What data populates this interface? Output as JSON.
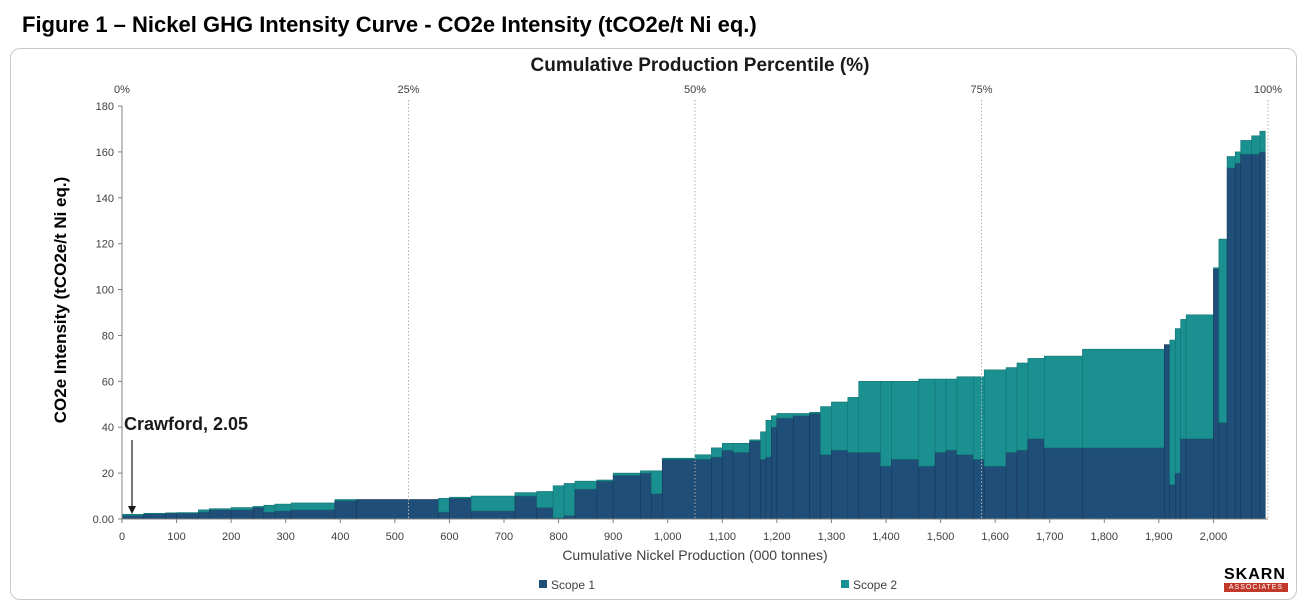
{
  "figure_title": "Figure 1 – Nickel GHG Intensity Curve - CO2e Intensity (tCO2e/t Ni eq.)",
  "logo": {
    "top": "SKARN",
    "bottom": "ASSOCIATES"
  },
  "colors": {
    "scope1": "#1f4e79",
    "scope2": "#1a9090",
    "grid": "#b0b0b0",
    "axis": "#808080"
  },
  "chart_data": {
    "type": "area",
    "subtype": "cost-curve (variable-width step bars, stacked)",
    "xlabel": "Cumulative Nickel Production (000 tonnes)",
    "ylabel": "CO2e Intensity (tCO2e/t Ni eq.)",
    "top_axis_title": "Cumulative Production Percentile (%)",
    "xlim": [
      0,
      2100
    ],
    "ylim": [
      0,
      180
    ],
    "x_ticks": [
      "0",
      "100",
      "200",
      "300",
      "400",
      "500",
      "600",
      "700",
      "800",
      "900",
      "1,000",
      "1,100",
      "1,200",
      "1,300",
      "1,400",
      "1,500",
      "1,600",
      "1,700",
      "1,800",
      "1,900",
      "2,000"
    ],
    "x_tick_values": [
      0,
      100,
      200,
      300,
      400,
      500,
      600,
      700,
      800,
      900,
      1000,
      1100,
      1200,
      1300,
      1400,
      1500,
      1600,
      1700,
      1800,
      1900,
      2000
    ],
    "y_ticks": [
      "0.00",
      "20",
      "40",
      "60",
      "80",
      "100",
      "120",
      "140",
      "160",
      "180"
    ],
    "y_tick_values": [
      0,
      20,
      40,
      60,
      80,
      100,
      120,
      140,
      160,
      180
    ],
    "top_ticks": [
      "0%",
      "25%",
      "50%",
      "75%",
      "100%"
    ],
    "top_tick_values": [
      0,
      0.25,
      0.5,
      0.75,
      1.0
    ],
    "grid": "vertical dotted lines at 25%, 50%, 75%, 100%",
    "legend": {
      "position": "bottom",
      "entries": [
        "Scope 1",
        "Scope 2"
      ]
    },
    "annotation": {
      "text": "Crawford, 2.05",
      "x": 25,
      "y": 2.05
    },
    "bars": [
      {
        "x0": 0,
        "x1": 40,
        "scope1": 1.5,
        "scope2": 0.55
      },
      {
        "x0": 40,
        "x1": 80,
        "scope1": 2.2,
        "scope2": 0.3
      },
      {
        "x0": 80,
        "x1": 100,
        "scope1": 2.5,
        "scope2": 0.2
      },
      {
        "x0": 100,
        "x1": 140,
        "scope1": 2.5,
        "scope2": 0.3
      },
      {
        "x0": 140,
        "x1": 160,
        "scope1": 3.0,
        "scope2": 1.0
      },
      {
        "x0": 160,
        "x1": 200,
        "scope1": 4.0,
        "scope2": 0.5
      },
      {
        "x0": 200,
        "x1": 240,
        "scope1": 4.0,
        "scope2": 1.0
      },
      {
        "x0": 240,
        "x1": 260,
        "scope1": 5.0,
        "scope2": 0.5
      },
      {
        "x0": 260,
        "x1": 280,
        "scope1": 3.0,
        "scope2": 3.0
      },
      {
        "x0": 280,
        "x1": 310,
        "scope1": 3.5,
        "scope2": 3.0
      },
      {
        "x0": 310,
        "x1": 390,
        "scope1": 4.0,
        "scope2": 3.0
      },
      {
        "x0": 390,
        "x1": 430,
        "scope1": 8.0,
        "scope2": 0.5
      },
      {
        "x0": 430,
        "x1": 580,
        "scope1": 8.5,
        "scope2": 0.0
      },
      {
        "x0": 580,
        "x1": 600,
        "scope1": 3.0,
        "scope2": 6.0
      },
      {
        "x0": 600,
        "x1": 640,
        "scope1": 9.0,
        "scope2": 0.5
      },
      {
        "x0": 640,
        "x1": 720,
        "scope1": 3.5,
        "scope2": 6.5
      },
      {
        "x0": 720,
        "x1": 760,
        "scope1": 10.0,
        "scope2": 1.5
      },
      {
        "x0": 760,
        "x1": 790,
        "scope1": 5.0,
        "scope2": 7.0
      },
      {
        "x0": 790,
        "x1": 810,
        "scope1": 0.5,
        "scope2": 14.0
      },
      {
        "x0": 810,
        "x1": 830,
        "scope1": 1.5,
        "scope2": 14.0
      },
      {
        "x0": 830,
        "x1": 870,
        "scope1": 13.0,
        "scope2": 3.5
      },
      {
        "x0": 870,
        "x1": 900,
        "scope1": 16.5,
        "scope2": 0.5
      },
      {
        "x0": 900,
        "x1": 950,
        "scope1": 19.0,
        "scope2": 1.0
      },
      {
        "x0": 950,
        "x1": 970,
        "scope1": 20.0,
        "scope2": 1.0
      },
      {
        "x0": 970,
        "x1": 990,
        "scope1": 11.0,
        "scope2": 10.0
      },
      {
        "x0": 990,
        "x1": 1050,
        "scope1": 26.0,
        "scope2": 0.5
      },
      {
        "x0": 1050,
        "x1": 1080,
        "scope1": 26.0,
        "scope2": 2.0
      },
      {
        "x0": 1080,
        "x1": 1100,
        "scope1": 27.0,
        "scope2": 4.0
      },
      {
        "x0": 1100,
        "x1": 1120,
        "scope1": 30.0,
        "scope2": 3.0
      },
      {
        "x0": 1120,
        "x1": 1150,
        "scope1": 29.0,
        "scope2": 4.0
      },
      {
        "x0": 1150,
        "x1": 1170,
        "scope1": 34.0,
        "scope2": 0.5
      },
      {
        "x0": 1170,
        "x1": 1180,
        "scope1": 26.0,
        "scope2": 12.0
      },
      {
        "x0": 1180,
        "x1": 1190,
        "scope1": 27.0,
        "scope2": 16.0
      },
      {
        "x0": 1190,
        "x1": 1200,
        "scope1": 40.0,
        "scope2": 5.0
      },
      {
        "x0": 1200,
        "x1": 1230,
        "scope1": 44.0,
        "scope2": 2.0
      },
      {
        "x0": 1230,
        "x1": 1260,
        "scope1": 45.0,
        "scope2": 1.0
      },
      {
        "x0": 1260,
        "x1": 1280,
        "scope1": 46.0,
        "scope2": 0.5
      },
      {
        "x0": 1280,
        "x1": 1300,
        "scope1": 28.0,
        "scope2": 21.0
      },
      {
        "x0": 1300,
        "x1": 1330,
        "scope1": 30.0,
        "scope2": 21.0
      },
      {
        "x0": 1330,
        "x1": 1350,
        "scope1": 29.0,
        "scope2": 24.0
      },
      {
        "x0": 1350,
        "x1": 1390,
        "scope1": 29.0,
        "scope2": 31.0
      },
      {
        "x0": 1390,
        "x1": 1410,
        "scope1": 23.0,
        "scope2": 37.0
      },
      {
        "x0": 1410,
        "x1": 1460,
        "scope1": 26.0,
        "scope2": 34.0
      },
      {
        "x0": 1460,
        "x1": 1490,
        "scope1": 23.0,
        "scope2": 38.0
      },
      {
        "x0": 1490,
        "x1": 1510,
        "scope1": 29.0,
        "scope2": 32.0
      },
      {
        "x0": 1510,
        "x1": 1530,
        "scope1": 30.0,
        "scope2": 31.0
      },
      {
        "x0": 1530,
        "x1": 1560,
        "scope1": 28.0,
        "scope2": 34.0
      },
      {
        "x0": 1560,
        "x1": 1580,
        "scope1": 26.0,
        "scope2": 36.0
      },
      {
        "x0": 1580,
        "x1": 1620,
        "scope1": 23.0,
        "scope2": 42.0
      },
      {
        "x0": 1620,
        "x1": 1640,
        "scope1": 29.0,
        "scope2": 37.0
      },
      {
        "x0": 1640,
        "x1": 1660,
        "scope1": 30.0,
        "scope2": 38.0
      },
      {
        "x0": 1660,
        "x1": 1690,
        "scope1": 35.0,
        "scope2": 35.0
      },
      {
        "x0": 1690,
        "x1": 1760,
        "scope1": 31.0,
        "scope2": 40.0
      },
      {
        "x0": 1760,
        "x1": 1910,
        "scope1": 31.0,
        "scope2": 43.0
      },
      {
        "x0": 1910,
        "x1": 1920,
        "scope1": 76.0,
        "scope2": 0.0
      },
      {
        "x0": 1920,
        "x1": 1930,
        "scope1": 15.0,
        "scope2": 63.0
      },
      {
        "x0": 1930,
        "x1": 1940,
        "scope1": 20.0,
        "scope2": 63.0
      },
      {
        "x0": 1940,
        "x1": 1950,
        "scope1": 35.0,
        "scope2": 52.0
      },
      {
        "x0": 1950,
        "x1": 2000,
        "scope1": 35.0,
        "scope2": 54.0
      },
      {
        "x0": 2000,
        "x1": 2010,
        "scope1": 109.0,
        "scope2": 0.5
      },
      {
        "x0": 2010,
        "x1": 2025,
        "scope1": 42.0,
        "scope2": 80.0
      },
      {
        "x0": 2025,
        "x1": 2040,
        "scope1": 153.0,
        "scope2": 5.0
      },
      {
        "x0": 2040,
        "x1": 2050,
        "scope1": 155.0,
        "scope2": 5.0
      },
      {
        "x0": 2050,
        "x1": 2070,
        "scope1": 159.0,
        "scope2": 6.0
      },
      {
        "x0": 2070,
        "x1": 2085,
        "scope1": 159.0,
        "scope2": 8.0
      },
      {
        "x0": 2085,
        "x1": 2095,
        "scope1": 160.0,
        "scope2": 9.0
      }
    ]
  }
}
